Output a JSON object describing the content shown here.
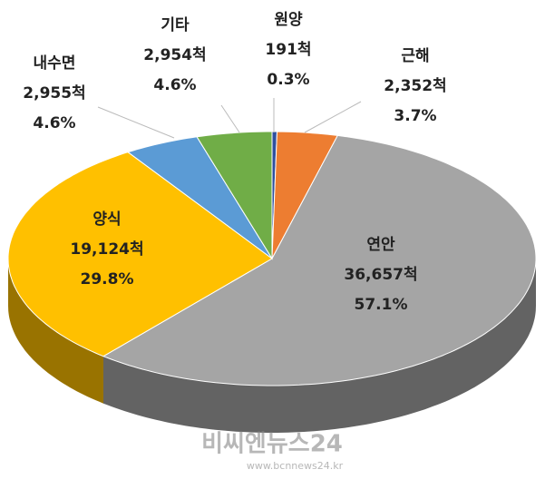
{
  "chart_data": {
    "type": "pie",
    "categories": [
      "원양",
      "근해",
      "연안",
      "양식",
      "내수면",
      "기타"
    ],
    "values": [
      0.3,
      3.7,
      57.1,
      29.8,
      4.6,
      4.6
    ],
    "value_labels": [
      "0.3%",
      "3.7%",
      "57.1%",
      "29.8%",
      "4.6%",
      "4.6%"
    ],
    "ship_counts": [
      191,
      2352,
      36657,
      19124,
      2955,
      2954
    ],
    "ship_count_labels": [
      "191척",
      "2,352척",
      "36,657척",
      "19,124척",
      "2,955척",
      "2,954척"
    ],
    "colors": [
      "#2f4f9f",
      "#ed7d31",
      "#a5a5a5",
      "#ffc000",
      "#5b9bd5",
      "#70ad47"
    ]
  },
  "watermark": {
    "title": "비씨엔뉴스24",
    "url": "www.bcnnews24.kr"
  }
}
